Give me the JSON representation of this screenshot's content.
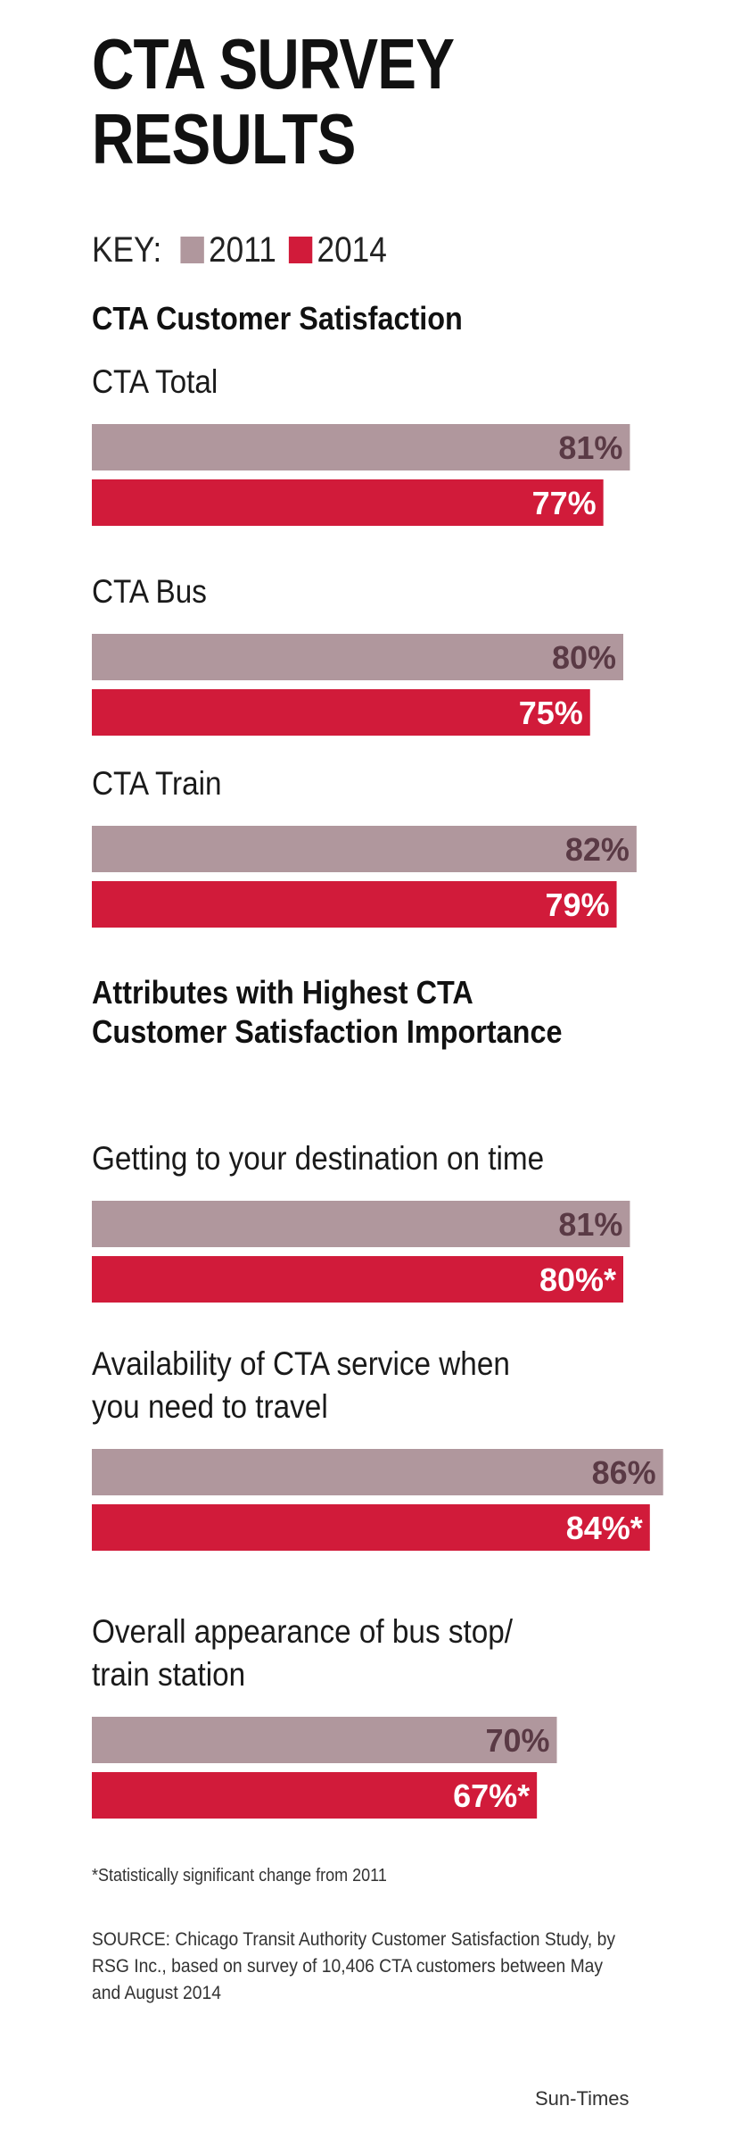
{
  "title_line1": "CTA SURVEY",
  "title_line2": "RESULTS",
  "key": {
    "label": "KEY:",
    "year_2011": "2011",
    "year_2014": "2014"
  },
  "colors": {
    "y2011": "#b0979d",
    "y2014": "#d11b3a",
    "label_2011": "#5a3a45",
    "label_2014": "#ffffff"
  },
  "section1_title": "CTA Customer Satisfaction",
  "section2_title_line1": "Attributes with Highest CTA",
  "section2_title_line2": "Customer Satisfaction Importance",
  "chart_data": {
    "type": "bar",
    "orientation": "horizontal",
    "title": "CTA SURVEY RESULTS",
    "series_names": [
      "2011",
      "2014"
    ],
    "xlim": [
      0,
      100
    ],
    "groups": [
      {
        "label_lines": [
          "CTA Total"
        ],
        "values": [
          81,
          77
        ],
        "labels": [
          "81%",
          "77%"
        ]
      },
      {
        "label_lines": [
          "CTA Bus"
        ],
        "values": [
          80,
          75
        ],
        "labels": [
          "80%",
          "75%"
        ]
      },
      {
        "label_lines": [
          "CTA Train"
        ],
        "values": [
          82,
          79
        ],
        "labels": [
          "82%",
          "79%"
        ]
      },
      {
        "label_lines": [
          "Getting to your destination on time"
        ],
        "values": [
          81,
          80
        ],
        "labels": [
          "81%",
          "80%*"
        ]
      },
      {
        "label_lines": [
          "Availability of CTA service when",
          "you need to travel"
        ],
        "values": [
          86,
          84
        ],
        "labels": [
          "86%",
          "84%*"
        ]
      },
      {
        "label_lines": [
          "Overall appearance of bus stop/",
          "train station"
        ],
        "values": [
          70,
          67
        ],
        "labels": [
          "70%",
          "67%*"
        ]
      }
    ]
  },
  "footnote": "*Statistically significant change from 2011",
  "source": "SOURCE: Chicago Transit Authority Customer Satisfaction Study, by RSG Inc., based on survey of 10,406 CTA customers between May and August 2014",
  "credit": "Sun-Times"
}
